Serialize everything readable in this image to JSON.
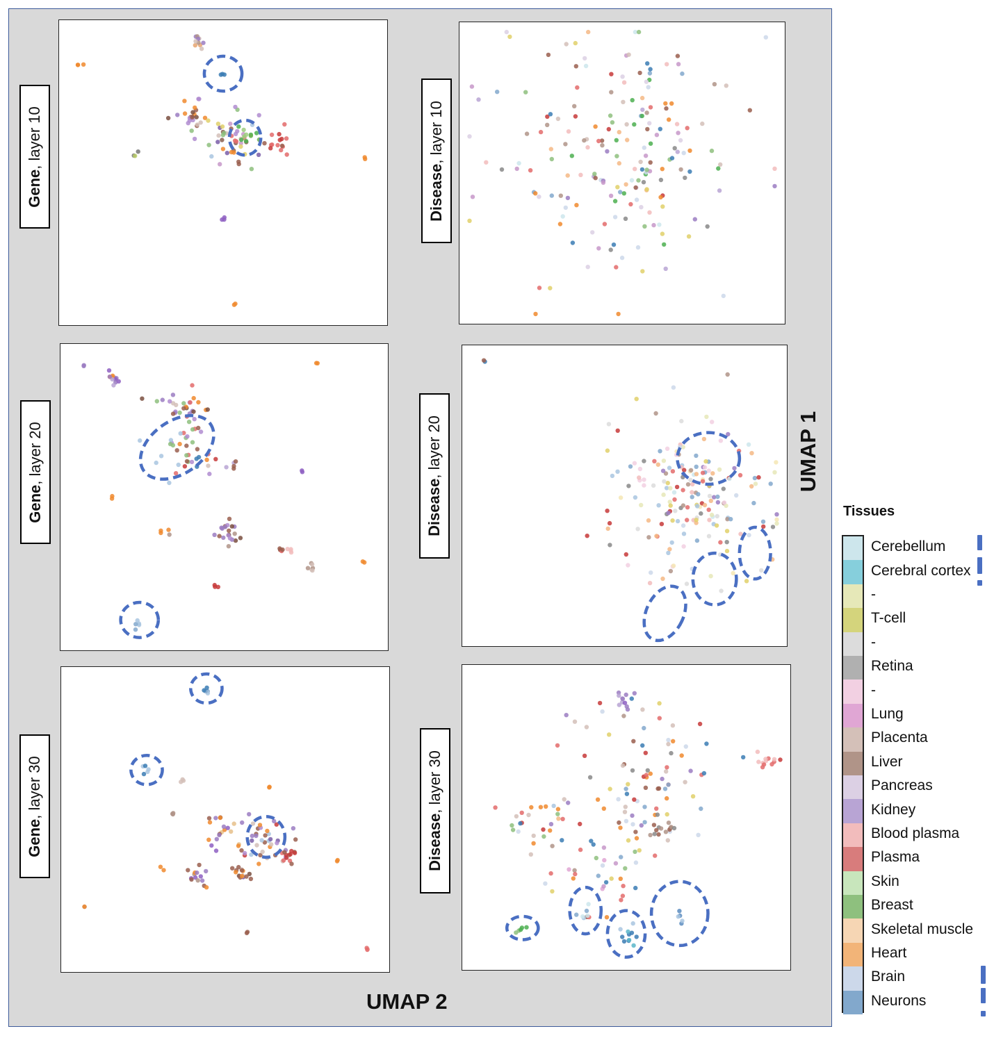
{
  "axes": {
    "umap2_label": "UMAP 2",
    "umap1_label": "UMAP 1"
  },
  "legend": {
    "title": "Tissues",
    "items": [
      {
        "label": "Cerebellum",
        "color": "#cde6ec"
      },
      {
        "label": "Cerebral cortex",
        "color": "#86cfdc"
      },
      {
        "label": "-",
        "color": "#e6e8b8"
      },
      {
        "label": "T-cell",
        "color": "#d4d47c"
      },
      {
        "label": "-",
        "color": "#dcdcdc"
      },
      {
        "label": "Retina",
        "color": "#b0b0b0"
      },
      {
        "label": "-",
        "color": "#f2d0e2"
      },
      {
        "label": "Lung",
        "color": "#e0a6d4"
      },
      {
        "label": "Placenta",
        "color": "#d4c0b8"
      },
      {
        "label": "Liver",
        "color": "#b09488"
      },
      {
        "label": "Pancreas",
        "color": "#dcd0e4"
      },
      {
        "label": "Kidney",
        "color": "#b8a4d4"
      },
      {
        "label": "Blood plasma",
        "color": "#f2bcbc"
      },
      {
        "label": "Plasma",
        "color": "#d87c7c"
      },
      {
        "label": "Skin",
        "color": "#c8e6bc"
      },
      {
        "label": "Breast",
        "color": "#8ec07e"
      },
      {
        "label": "Skeletal muscle",
        "color": "#f6d6b4"
      },
      {
        "label": "Heart",
        "color": "#f2b478"
      },
      {
        "label": "Brain",
        "color": "#ccd8ea"
      },
      {
        "label": "Neurons",
        "color": "#82a8cc"
      }
    ]
  },
  "chart_data": [
    {
      "type": "scatter",
      "title_bold": "Gene",
      "title_rest": ", layer 10",
      "xlim": [
        0,
        100
      ],
      "ylim": [
        0,
        100
      ],
      "clusters": [
        {
          "x": 4,
          "y": 87,
          "n": 3,
          "s": 0.4,
          "c": [
            "#f08a2e"
          ]
        },
        {
          "x": 43,
          "y": 95,
          "n": 10,
          "s": 1.2,
          "c": [
            "#b09488",
            "#e6a570",
            "#9b7dc2",
            "#d4c0b8"
          ]
        },
        {
          "x": 50,
          "y": 84,
          "n": 3,
          "s": 0.5,
          "c": [
            "#3b7cb4"
          ]
        },
        {
          "x": 40,
          "y": 69,
          "n": 22,
          "s": 2.8,
          "c": [
            "#9a5f4f",
            "#b08cd0",
            "#7a4f3f",
            "#d4c0b8",
            "#9b7dc2",
            "#f08a2e"
          ]
        },
        {
          "x": 53,
          "y": 61,
          "n": 45,
          "s": 5,
          "c": [
            "#9a5f4f",
            "#b08cd0",
            "#e36b6b",
            "#8ec07e",
            "#f08a2e",
            "#c73a3a",
            "#7a5ea8",
            "#d4c0b8",
            "#a9c6e0",
            "#e0d06a",
            "#8a5f4f",
            "#c798c9"
          ]
        },
        {
          "x": 57,
          "y": 63,
          "n": 10,
          "s": 1.5,
          "c": [
            "#4caf50",
            "#6ab04c",
            "#9ecd7e"
          ]
        },
        {
          "x": 68,
          "y": 61,
          "n": 14,
          "s": 2,
          "c": [
            "#c73a3a",
            "#e36b6b",
            "#9a5f4f"
          ]
        },
        {
          "x": 22,
          "y": 56,
          "n": 3,
          "s": 0.6,
          "c": [
            "#777777",
            "#b8cc66"
          ]
        },
        {
          "x": 95,
          "y": 55,
          "n": 2,
          "s": 0.4,
          "c": [
            "#f08a2e"
          ]
        },
        {
          "x": 50,
          "y": 34,
          "n": 3,
          "s": 0.4,
          "c": [
            "#8e5fc2"
          ]
        },
        {
          "x": 54,
          "y": 5,
          "n": 2,
          "s": 0.4,
          "c": [
            "#f08a2e"
          ]
        }
      ],
      "ellipses": [
        {
          "cx": 50,
          "cy": 84,
          "rx": 6,
          "ry": 6
        },
        {
          "cx": 57,
          "cy": 62,
          "rx": 5,
          "ry": 6
        }
      ]
    },
    {
      "type": "scatter",
      "title_bold": "Disease",
      "title_rest": ", layer 10",
      "xlim": [
        0,
        100
      ],
      "ylim": [
        0,
        100
      ],
      "clusters": [
        {
          "x": 50,
          "y": 55,
          "n": 190,
          "s": 20,
          "c": [
            "#f08a2e",
            "#f5b985",
            "#e36b6b",
            "#c73a3a",
            "#9a5f4f",
            "#b09488",
            "#9b7dc2",
            "#b8a4d4",
            "#c798c9",
            "#3b7cb4",
            "#82a8cc",
            "#ccd8ea",
            "#cde6ec",
            "#8ec07e",
            "#4caf50",
            "#e0d06a",
            "#888888",
            "#d4c0b8",
            "#f2bcbc",
            "#dcd0e4"
          ]
        }
      ],
      "ellipses": []
    },
    {
      "type": "scatter",
      "title_bold": "Gene",
      "title_rest": ", layer 20",
      "xlim": [
        0,
        100
      ],
      "ylim": [
        0,
        100
      ],
      "clusters": [
        {
          "x": 5,
          "y": 95,
          "n": 2,
          "s": 0.3,
          "c": [
            "#c73a3a",
            "#9b7dc2"
          ]
        },
        {
          "x": 15,
          "y": 91,
          "n": 12,
          "s": 1.5,
          "c": [
            "#9b7dc2",
            "#8e5fc2",
            "#f08a2e",
            "#b8a4d4"
          ]
        },
        {
          "x": 80,
          "y": 96,
          "n": 2,
          "s": 0.4,
          "c": [
            "#f08a2e"
          ]
        },
        {
          "x": 37,
          "y": 80,
          "n": 30,
          "s": 4,
          "c": [
            "#9a5f4f",
            "#f08a2e",
            "#b08cd0",
            "#d4c0b8",
            "#7a4f3f",
            "#8ec07e",
            "#e36b6b",
            "#9b7dc2"
          ]
        },
        {
          "x": 39,
          "y": 65,
          "n": 35,
          "s": 5,
          "c": [
            "#9a5f4f",
            "#b08cd0",
            "#e36b6b",
            "#3b7cb4",
            "#d4c0b8",
            "#f08a2e",
            "#a9c6e0",
            "#c73a3a",
            "#8ec07e"
          ]
        },
        {
          "x": 52,
          "y": 61,
          "n": 5,
          "s": 1,
          "c": [
            "#b8a4d4",
            "#e0d06a",
            "#9a5f4f"
          ]
        },
        {
          "x": 75,
          "y": 59,
          "n": 2,
          "s": 0.3,
          "c": [
            "#8e5fc2"
          ]
        },
        {
          "x": 14,
          "y": 50,
          "n": 2,
          "s": 0.3,
          "c": [
            "#f08a2e"
          ]
        },
        {
          "x": 31,
          "y": 38,
          "n": 4,
          "s": 0.8,
          "c": [
            "#b09488",
            "#f08a2e",
            "#9a5f4f"
          ]
        },
        {
          "x": 51,
          "y": 38,
          "n": 20,
          "s": 2,
          "c": [
            "#9a5f4f",
            "#b08cd0",
            "#7a4f3f",
            "#b09488",
            "#9b7dc2"
          ]
        },
        {
          "x": 68,
          "y": 32,
          "n": 6,
          "s": 0.6,
          "c": [
            "#9a5f4f",
            "#c73a3a",
            "#e36b6b"
          ]
        },
        {
          "x": 71,
          "y": 32,
          "n": 4,
          "s": 0.5,
          "c": [
            "#f2bcbc",
            "#e36b6b"
          ]
        },
        {
          "x": 78,
          "y": 26,
          "n": 6,
          "s": 0.8,
          "c": [
            "#b09488",
            "#d4c0b8",
            "#9a5f4f"
          ]
        },
        {
          "x": 95,
          "y": 28,
          "n": 2,
          "s": 0.3,
          "c": [
            "#f08a2e"
          ]
        },
        {
          "x": 47,
          "y": 19,
          "n": 3,
          "s": 0.5,
          "c": [
            "#c73a3a"
          ]
        },
        {
          "x": 23,
          "y": 6,
          "n": 5,
          "s": 0.8,
          "c": [
            "#3b7cb4",
            "#a9c6e0",
            "#82a8cc"
          ]
        }
      ],
      "ellipses": [
        {
          "cx": 35,
          "cy": 67,
          "rx": 13,
          "ry": 9,
          "rot": -35
        },
        {
          "cx": 23,
          "cy": 8,
          "rx": 6,
          "ry": 6
        }
      ]
    },
    {
      "type": "scatter",
      "title_bold": "Disease",
      "title_rest": ", layer 20",
      "xlim": [
        0,
        100
      ],
      "ylim": [
        0,
        100
      ],
      "clusters": [
        {
          "x": 5,
          "y": 97,
          "n": 2,
          "s": 0.3,
          "c": [
            "#9a5f4f",
            "#3b7cb4"
          ]
        },
        {
          "x": 72,
          "y": 50,
          "n": 190,
          "s": 13,
          "c": [
            "#f5e6b4",
            "#e6e8b8",
            "#cde6ec",
            "#ccd8ea",
            "#f2d0e2",
            "#e36b6b",
            "#c73a3a",
            "#f5b985",
            "#82a8cc",
            "#b09488",
            "#888888",
            "#9b7dc2",
            "#f2bcbc",
            "#dcdcdc",
            "#a9c6e0",
            "#e0d06a"
          ]
        }
      ],
      "ellipses": [
        {
          "cx": 77,
          "cy": 63,
          "rx": 10,
          "ry": 9
        },
        {
          "cx": 63,
          "cy": 9,
          "rx": 6,
          "ry": 10,
          "rot": 25
        },
        {
          "cx": 79,
          "cy": 21,
          "rx": 7,
          "ry": 9
        },
        {
          "cx": 92,
          "cy": 30,
          "rx": 5,
          "ry": 9
        }
      ]
    },
    {
      "type": "scatter",
      "title_bold": "Gene",
      "title_rest": ", layer 30",
      "xlim": [
        0,
        100
      ],
      "ylim": [
        0,
        100
      ],
      "clusters": [
        {
          "x": 44,
          "y": 94,
          "n": 5,
          "s": 0.6,
          "c": [
            "#3b7cb4",
            "#a9c6e0",
            "#82a8cc"
          ]
        },
        {
          "x": 25,
          "y": 67,
          "n": 5,
          "s": 0.8,
          "c": [
            "#a9c6e0",
            "#cde6ec",
            "#3b7cb4"
          ]
        },
        {
          "x": 36,
          "y": 63,
          "n": 3,
          "s": 0.4,
          "c": [
            "#b09488",
            "#d4c0b8"
          ]
        },
        {
          "x": 64,
          "y": 61,
          "n": 2,
          "s": 0.3,
          "c": [
            "#f08a2e"
          ]
        },
        {
          "x": 33,
          "y": 52,
          "n": 3,
          "s": 0.4,
          "c": [
            "#b09488"
          ]
        },
        {
          "x": 49,
          "y": 46,
          "n": 18,
          "s": 3,
          "c": [
            "#9b7dc2",
            "#8e5fc2",
            "#9a5f4f",
            "#7a4f3f",
            "#e6c08a",
            "#f08a2e"
          ]
        },
        {
          "x": 62,
          "y": 42,
          "n": 40,
          "s": 5,
          "c": [
            "#9a5f4f",
            "#b08cd0",
            "#c73a3a",
            "#8ec07e",
            "#f08a2e",
            "#a9c6e0",
            "#7a5ea8",
            "#e0d06a",
            "#d4c0b8",
            "#9b7dc2"
          ]
        },
        {
          "x": 70,
          "y": 38,
          "n": 12,
          "s": 1.5,
          "c": [
            "#c73a3a",
            "#9a5f4f",
            "#e36b6b"
          ]
        },
        {
          "x": 55,
          "y": 32,
          "n": 14,
          "s": 2,
          "c": [
            "#9a5f4f",
            "#7a4f3f",
            "#f08a2e",
            "#d4c0b8"
          ]
        },
        {
          "x": 41,
          "y": 31,
          "n": 14,
          "s": 2,
          "c": [
            "#9b7dc2",
            "#8e5fc2",
            "#b09488",
            "#9a5f4f",
            "#f08a2e"
          ]
        },
        {
          "x": 30,
          "y": 33,
          "n": 2,
          "s": 0.3,
          "c": [
            "#f08a2e"
          ]
        },
        {
          "x": 86,
          "y": 36,
          "n": 2,
          "s": 0.3,
          "c": [
            "#f08a2e"
          ]
        },
        {
          "x": 5,
          "y": 20,
          "n": 2,
          "s": 0.3,
          "c": [
            "#f08a2e",
            "#b09488"
          ]
        },
        {
          "x": 57,
          "y": 11,
          "n": 2,
          "s": 0.3,
          "c": [
            "#9a5f4f"
          ]
        },
        {
          "x": 95,
          "y": 5,
          "n": 3,
          "s": 0.5,
          "c": [
            "#f2bcbc",
            "#e36b6b"
          ]
        }
      ],
      "ellipses": [
        {
          "cx": 44,
          "cy": 95,
          "rx": 5,
          "ry": 5
        },
        {
          "cx": 25,
          "cy": 67,
          "rx": 5,
          "ry": 5
        },
        {
          "cx": 63,
          "cy": 44,
          "rx": 6,
          "ry": 7
        }
      ]
    },
    {
      "type": "scatter",
      "title_bold": "Disease",
      "title_rest": ", layer 30",
      "xlim": [
        0,
        100
      ],
      "ylim": [
        0,
        100
      ],
      "clusters": [
        {
          "x": 50,
          "y": 90,
          "n": 10,
          "s": 2,
          "c": [
            "#9b7dc2",
            "#b8a4d4",
            "#8e5fc2",
            "#f08a2e"
          ]
        },
        {
          "x": 55,
          "y": 65,
          "n": 80,
          "s": 12,
          "c": [
            "#9a5f4f",
            "#b09488",
            "#e36b6b",
            "#c73a3a",
            "#f08a2e",
            "#9b7dc2",
            "#82a8cc",
            "#3b7cb4",
            "#e0d06a",
            "#ccd8ea",
            "#888888",
            "#d4c0b8"
          ]
        },
        {
          "x": 95,
          "y": 70,
          "n": 12,
          "s": 1.5,
          "c": [
            "#f2bcbc",
            "#e36b6b",
            "#c73a3a"
          ]
        },
        {
          "x": 62,
          "y": 47,
          "n": 14,
          "s": 2,
          "c": [
            "#888888",
            "#9a5f4f",
            "#b09488"
          ]
        },
        {
          "x": 20,
          "y": 48,
          "n": 25,
          "s": 6,
          "c": [
            "#f08a2e",
            "#f5b985",
            "#9b7dc2",
            "#c73a3a",
            "#82a8cc",
            "#3b7cb4",
            "#8ec07e",
            "#a9c6e0",
            "#d4c0b8",
            "#e36b6b"
          ]
        },
        {
          "x": 42,
          "y": 32,
          "n": 40,
          "s": 9,
          "c": [
            "#f08a2e",
            "#c798c9",
            "#e0a6d4",
            "#e36b6b",
            "#82a8cc",
            "#3b7cb4",
            "#8ec07e",
            "#e0d06a",
            "#b09488",
            "#9a5f4f",
            "#ccd8ea"
          ]
        },
        {
          "x": 17,
          "y": 12,
          "n": 5,
          "s": 1,
          "c": [
            "#8ec07e",
            "#4caf50",
            "#f08a2e"
          ]
        },
        {
          "x": 37,
          "y": 17,
          "n": 6,
          "s": 1.5,
          "c": [
            "#a9c6e0",
            "#cde6ec",
            "#82a8cc"
          ]
        },
        {
          "x": 51,
          "y": 10,
          "n": 10,
          "s": 1.8,
          "c": [
            "#3b7cb4",
            "#5bb6c9",
            "#a9c6e0",
            "#82a8cc"
          ]
        },
        {
          "x": 68,
          "y": 15,
          "n": 5,
          "s": 1.5,
          "c": [
            "#5b8cbf",
            "#a9c6e0",
            "#3b7cb4"
          ]
        }
      ],
      "ellipses": [
        {
          "cx": 17,
          "cy": 12,
          "rx": 5,
          "ry": 4
        },
        {
          "cx": 37,
          "cy": 18,
          "rx": 5,
          "ry": 8
        },
        {
          "cx": 50,
          "cy": 10,
          "rx": 6,
          "ry": 8
        },
        {
          "cx": 67,
          "cy": 17,
          "rx": 9,
          "ry": 11
        }
      ]
    }
  ]
}
